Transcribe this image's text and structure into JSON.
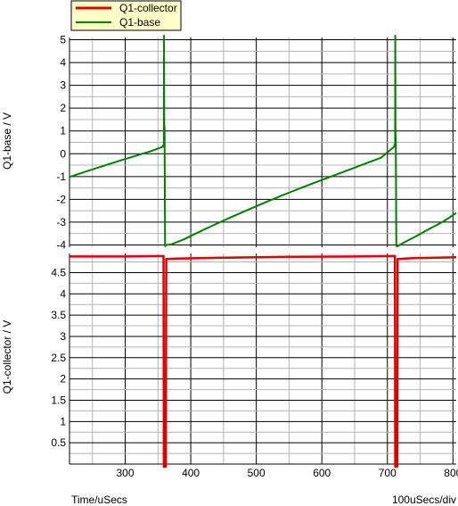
{
  "chart_data": {
    "type": "line",
    "x_axis": {
      "label": "Time/uSecs",
      "scale_note": "100uSecs/div",
      "range": [
        215,
        805
      ],
      "ticks": [
        300,
        400,
        500,
        600,
        700,
        800
      ],
      "minor_step": 50
    },
    "legend": {
      "placement": "top-left",
      "entries": [
        {
          "name": "Q1-collector",
          "color": "#e00000"
        },
        {
          "name": "Q1-base",
          "color": "#008000"
        }
      ]
    },
    "panels": [
      {
        "ylabel": "Q1-base / V",
        "ylim": [
          -4.1,
          5.1
        ],
        "y_ticks": [
          -4,
          -3,
          -2,
          -1,
          0,
          1,
          2,
          3,
          4,
          5
        ],
        "y_minor_step": 0.5,
        "series": [
          {
            "name": "Q1-base",
            "color": "#008000",
            "points": [
              [
                215,
                -1.02
              ],
              [
                240,
                -0.78
              ],
              [
                265,
                -0.55
              ],
              [
                290,
                -0.32
              ],
              [
                315,
                -0.1
              ],
              [
                340,
                0.12
              ],
              [
                357,
                0.3
              ],
              [
                359,
                0.42
              ],
              [
                359.2,
                5.3
              ],
              [
                359.6,
                0.3
              ],
              [
                360,
                1.2
              ],
              [
                360.8,
                -4.05
              ],
              [
                363,
                -4.0
              ],
              [
                370,
                -3.98
              ],
              [
                390,
                -3.75
              ],
              [
                420,
                -3.33
              ],
              [
                450,
                -2.93
              ],
              [
                480,
                -2.55
              ],
              [
                510,
                -2.18
              ],
              [
                540,
                -1.82
              ],
              [
                570,
                -1.48
              ],
              [
                600,
                -1.15
              ],
              [
                630,
                -0.83
              ],
              [
                660,
                -0.5
              ],
              [
                690,
                -0.18
              ],
              [
                710,
                0.3
              ],
              [
                711.8,
                0.45
              ],
              [
                712,
                5.3
              ],
              [
                712.4,
                0.3
              ],
              [
                712.8,
                0.8
              ],
              [
                713.6,
                -4.05
              ],
              [
                716,
                -4.05
              ],
              [
                725,
                -3.9
              ],
              [
                745,
                -3.6
              ],
              [
                765,
                -3.28
              ],
              [
                785,
                -2.98
              ],
              [
                805,
                -2.6
              ]
            ]
          }
        ]
      },
      {
        "ylabel": "Q1-collector / V",
        "ylim": [
          0,
          4.95
        ],
        "y_ticks": [
          0.5,
          1,
          1.5,
          2,
          2.5,
          3,
          3.5,
          4,
          4.5
        ],
        "y_minor_step": 0.25,
        "series": [
          {
            "name": "Q1-collector",
            "color": "#e00000",
            "points": [
              [
                215,
                4.88
              ],
              [
                300,
                4.88
              ],
              [
                358,
                4.89
              ],
              [
                358.5,
                4.89
              ],
              [
                359,
                -0.2
              ],
              [
                362,
                -0.2
              ],
              [
                362.6,
                4.82
              ],
              [
                380,
                4.83
              ],
              [
                450,
                4.85
              ],
              [
                550,
                4.87
              ],
              [
                650,
                4.88
              ],
              [
                710,
                4.89
              ],
              [
                711.5,
                4.89
              ],
              [
                712,
                -0.2
              ],
              [
                715,
                -0.2
              ],
              [
                715.6,
                4.82
              ],
              [
                740,
                4.84
              ],
              [
                805,
                4.86
              ]
            ]
          }
        ]
      }
    ]
  }
}
